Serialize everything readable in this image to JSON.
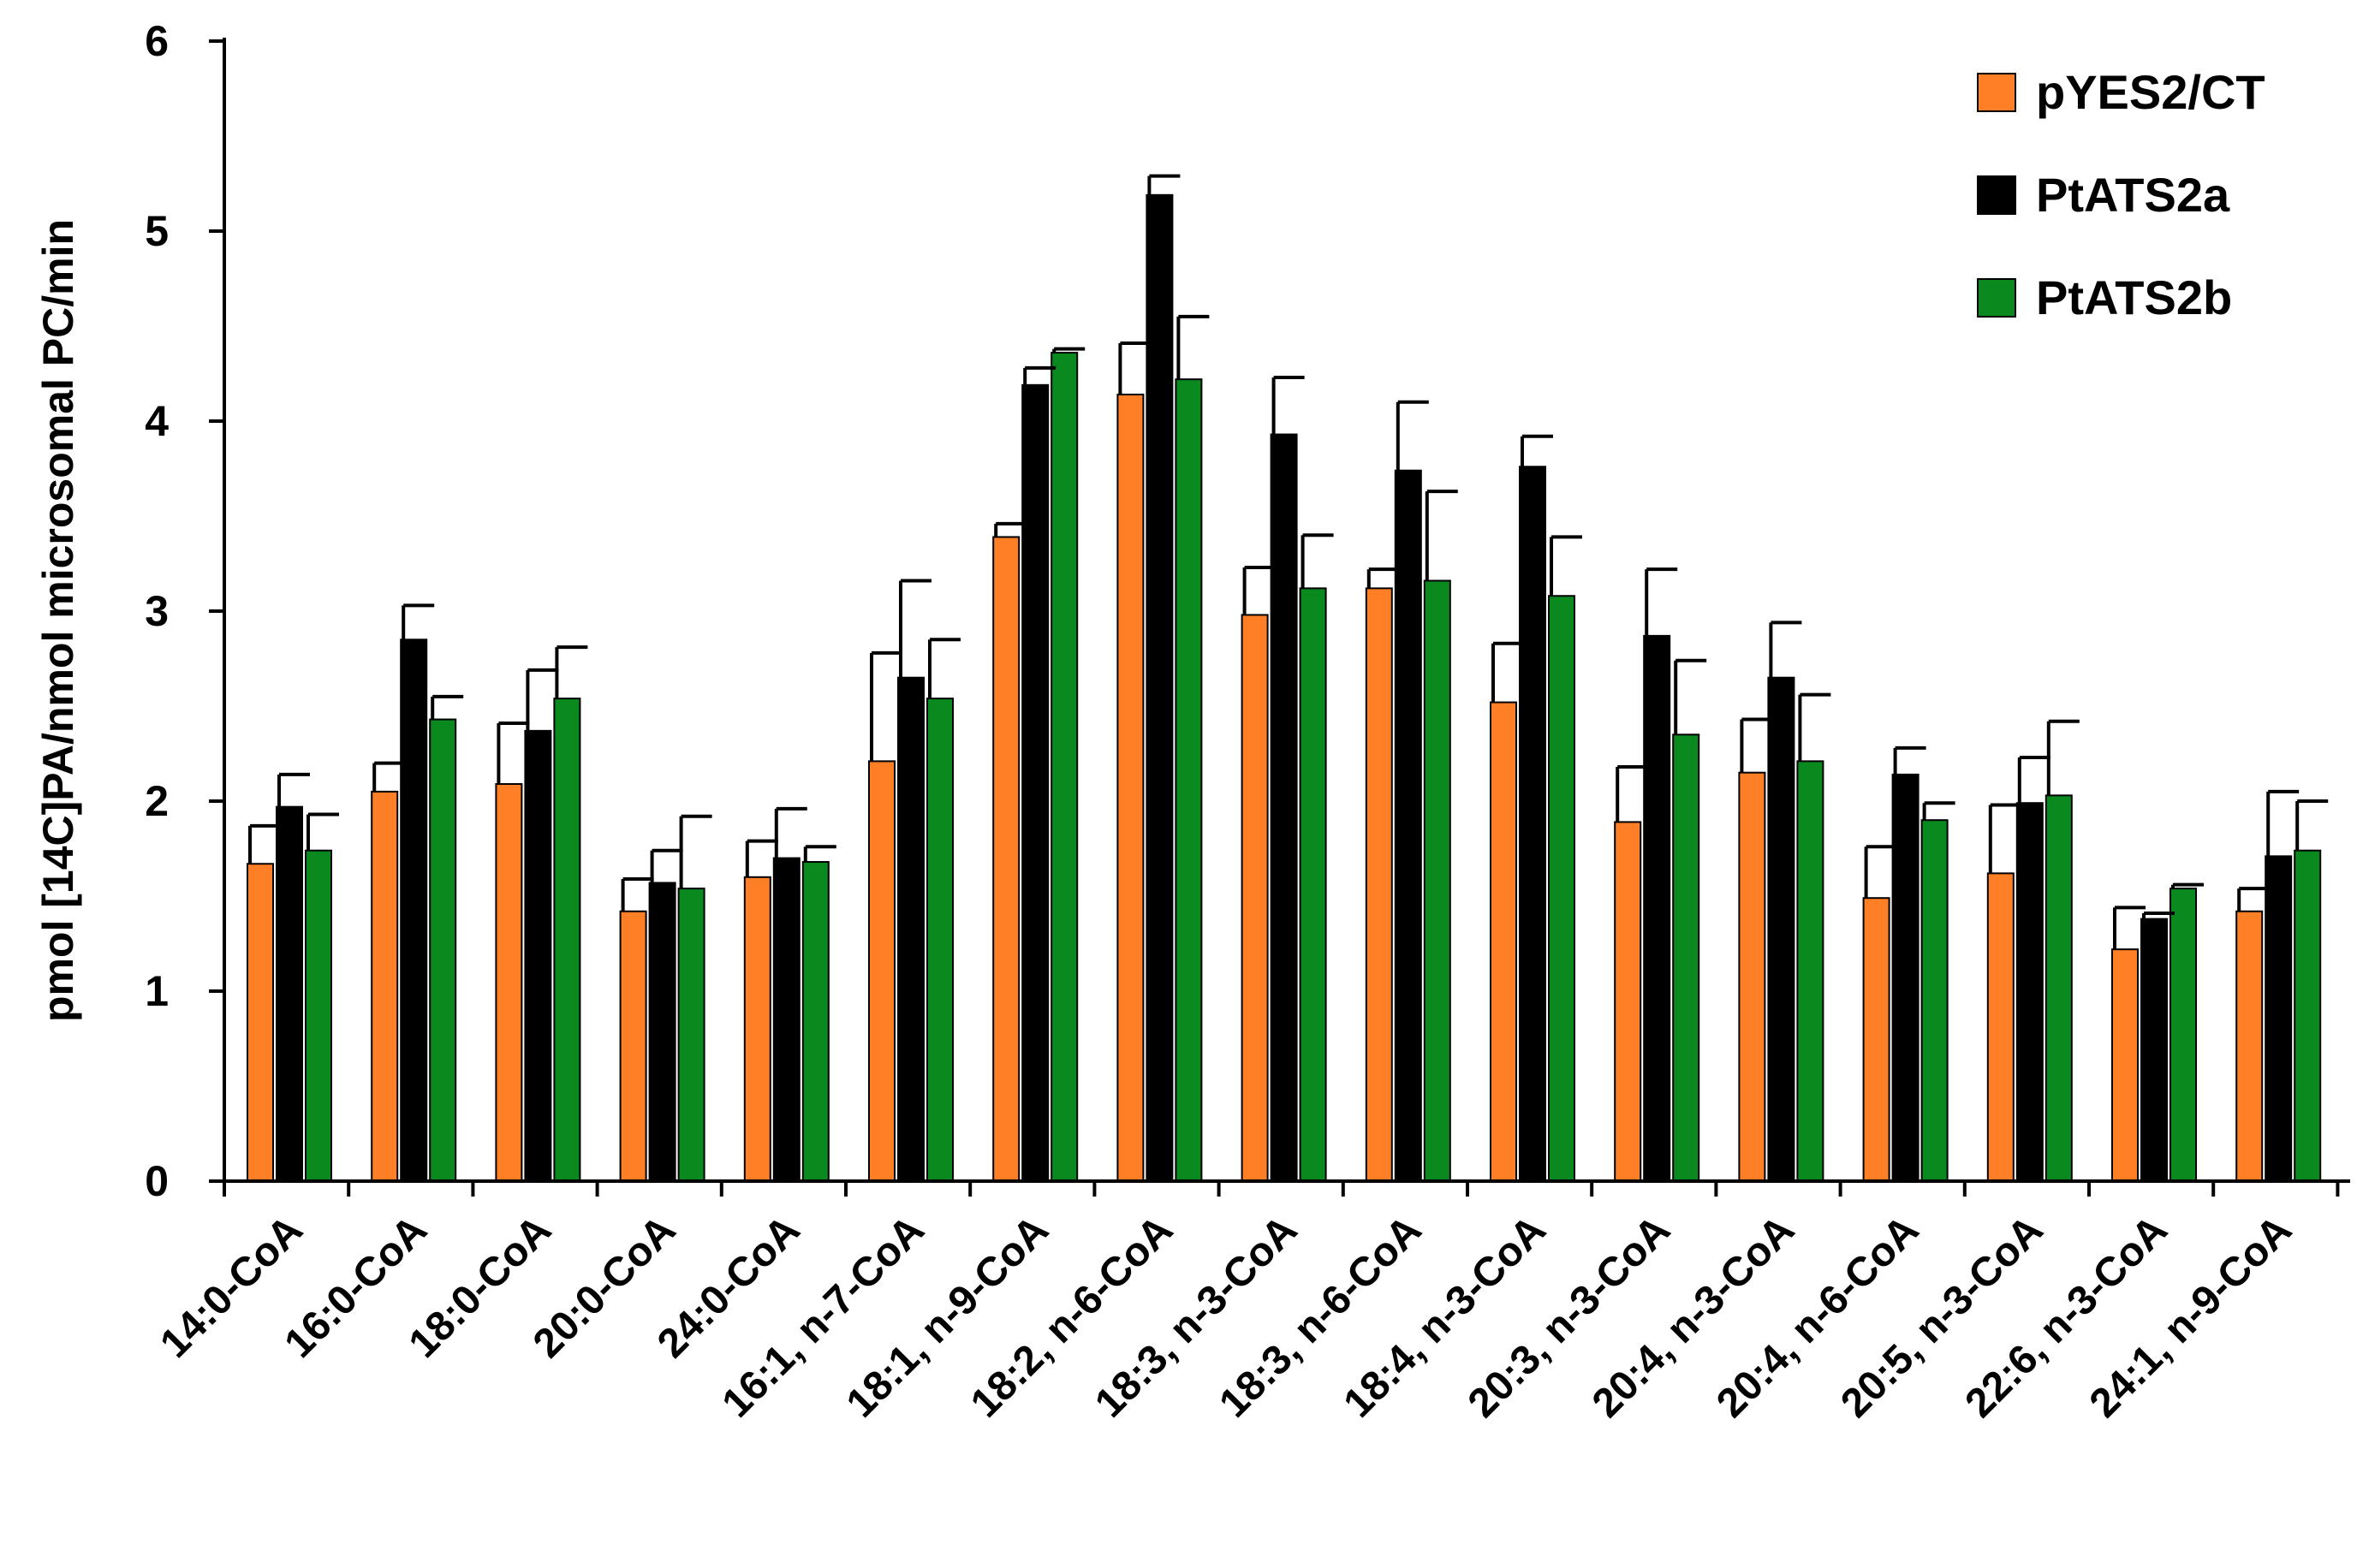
{
  "chart_data": {
    "type": "bar",
    "title": "",
    "xlabel": "",
    "ylabel": "pmol [14C]PA/nmol microsomal PC/min",
    "ylim": [
      0,
      6
    ],
    "yticks": [
      "0",
      "1",
      "2",
      "3",
      "4",
      "5",
      "6"
    ],
    "grid": false,
    "legend_position": "top-right",
    "categories": [
      "14:0-CoA",
      "16:0-CoA",
      "18:0-CoA",
      "20:0-CoA",
      "24:0-CoA",
      "16:1, n-7-CoA",
      "18:1, n-9-CoA",
      "18:2, n-6-CoA",
      "18:3, n-3-CoA",
      "18:3, n-6-CoA",
      "18:4, n-3-CoA",
      "20:3, n-3-CoA",
      "20:4, n-3-CoA",
      "20:4, n-6-CoA",
      "20:5, n-3-CoA",
      "22:6, n-3-CoA",
      "24:1, n-9-CoA"
    ],
    "series": [
      {
        "name": "pYES2/CT",
        "color": "#ff7f27",
        "values": [
          1.67,
          2.05,
          2.09,
          1.42,
          1.6,
          2.21,
          3.39,
          4.14,
          2.98,
          3.12,
          2.52,
          1.89,
          2.15,
          1.49,
          1.62,
          1.22,
          1.42
        ],
        "errors": [
          0.2,
          0.15,
          0.32,
          0.17,
          0.19,
          0.57,
          0.07,
          0.27,
          0.25,
          0.1,
          0.31,
          0.29,
          0.28,
          0.27,
          0.36,
          0.22,
          0.12
        ]
      },
      {
        "name": "PtATS2a",
        "color": "#000000",
        "values": [
          1.97,
          2.85,
          2.37,
          1.57,
          1.7,
          2.65,
          4.19,
          5.19,
          3.93,
          3.74,
          3.76,
          2.87,
          2.65,
          2.14,
          1.99,
          1.38,
          1.71
        ],
        "errors": [
          0.17,
          0.18,
          0.32,
          0.17,
          0.26,
          0.51,
          0.09,
          0.1,
          0.3,
          0.36,
          0.16,
          0.35,
          0.29,
          0.14,
          0.24,
          0.03,
          0.34
        ]
      },
      {
        "name": "PtATS2b",
        "color": "#0a8a1e",
        "values": [
          1.74,
          2.43,
          2.54,
          1.54,
          1.68,
          2.54,
          4.36,
          4.22,
          3.12,
          3.16,
          3.08,
          2.35,
          2.21,
          1.9,
          2.03,
          1.54,
          1.74
        ],
        "errors": [
          0.19,
          0.12,
          0.27,
          0.38,
          0.08,
          0.31,
          0.02,
          0.33,
          0.28,
          0.47,
          0.31,
          0.39,
          0.35,
          0.09,
          0.39,
          0.02,
          0.26
        ]
      }
    ]
  }
}
